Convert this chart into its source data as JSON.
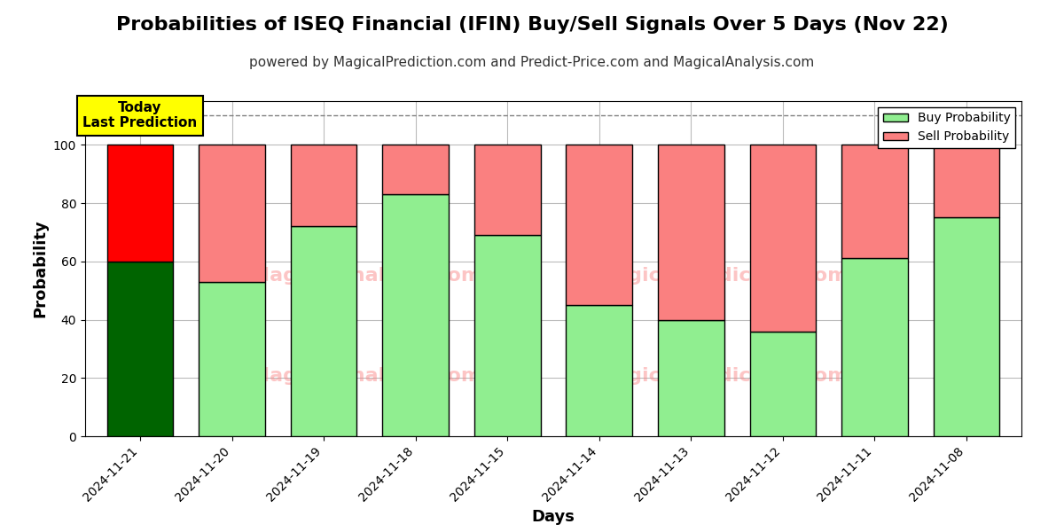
{
  "title": "Probabilities of ISEQ Financial (IFIN) Buy/Sell Signals Over 5 Days (Nov 22)",
  "subtitle": "powered by MagicalPrediction.com and Predict-Price.com and MagicalAnalysis.com",
  "xlabel": "Days",
  "ylabel": "Probability",
  "dates": [
    "2024-11-21",
    "2024-11-20",
    "2024-11-19",
    "2024-11-18",
    "2024-11-15",
    "2024-11-14",
    "2024-11-13",
    "2024-11-12",
    "2024-11-11",
    "2024-11-08"
  ],
  "buy_values": [
    60,
    53,
    72,
    83,
    69,
    45,
    40,
    36,
    61,
    75
  ],
  "sell_values": [
    40,
    47,
    28,
    17,
    31,
    55,
    60,
    64,
    39,
    25
  ],
  "buy_colors": [
    "#006400",
    "#90EE90",
    "#90EE90",
    "#90EE90",
    "#90EE90",
    "#90EE90",
    "#90EE90",
    "#90EE90",
    "#90EE90",
    "#90EE90"
  ],
  "sell_colors": [
    "#FF0000",
    "#FA8080",
    "#FA8080",
    "#FA8080",
    "#FA8080",
    "#FA8080",
    "#FA8080",
    "#FA8080",
    "#FA8080",
    "#FA8080"
  ],
  "today_label": "Today\nLast Prediction",
  "today_label_bg": "#FFFF00",
  "legend_buy_color": "#90EE90",
  "legend_sell_color": "#FA8080",
  "ylim": [
    0,
    115
  ],
  "yticks": [
    0,
    20,
    40,
    60,
    80,
    100
  ],
  "dashed_line_y": 110,
  "bar_edge_color": "#000000",
  "bar_linewidth": 1.0,
  "title_fontsize": 16,
  "subtitle_fontsize": 11,
  "axis_label_fontsize": 13,
  "tick_fontsize": 10,
  "background_color": "#ffffff",
  "grid_color": "#bbbbbb"
}
